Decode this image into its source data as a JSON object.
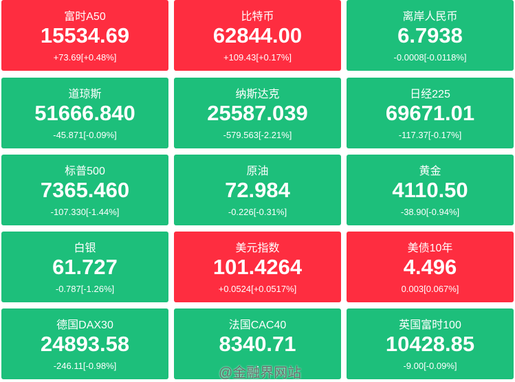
{
  "tiles": [
    {
      "name": "富时A50",
      "price": "15534.69",
      "change": "+73.69[+0.48%]",
      "color": "#fe2d40"
    },
    {
      "name": "比特币",
      "price": "62844.00",
      "change": "+109.43[+0.17%]",
      "color": "#fe2d40"
    },
    {
      "name": "离岸人民币",
      "price": "6.7938",
      "change": "-0.0008[-0.0118%]",
      "color": "#1dbf7b"
    },
    {
      "name": "道琼斯",
      "price": "51666.840",
      "change": "-45.871[-0.09%]",
      "color": "#1dbf7b"
    },
    {
      "name": "纳斯达克",
      "price": "25587.039",
      "change": "-579.563[-2.21%]",
      "color": "#1dbf7b"
    },
    {
      "name": "日经225",
      "price": "69671.01",
      "change": "-117.37[-0.17%]",
      "color": "#1dbf7b"
    },
    {
      "name": "标普500",
      "price": "7365.460",
      "change": "-107.330[-1.44%]",
      "color": "#1dbf7b"
    },
    {
      "name": "原油",
      "price": "72.984",
      "change": "-0.226[-0.31%]",
      "color": "#1dbf7b"
    },
    {
      "name": "黄金",
      "price": "4110.50",
      "change": "-38.90[-0.94%]",
      "color": "#1dbf7b"
    },
    {
      "name": "白银",
      "price": "61.727",
      "change": "-0.787[-1.26%]",
      "color": "#1dbf7b"
    },
    {
      "name": "美元指数",
      "price": "101.4264",
      "change": "+0.0524[+0.0517%]",
      "color": "#fe2d40"
    },
    {
      "name": "美债10年",
      "price": "4.496",
      "change": "0.003[0.067%]",
      "color": "#fe2d40"
    },
    {
      "name": "德国DAX30",
      "price": "24893.58",
      "change": "-246.11[-0.98%]",
      "color": "#1dbf7b"
    },
    {
      "name": "法国CAC40",
      "price": "8340.71",
      "change": "-",
      "color": "#1dbf7b"
    },
    {
      "name": "英国富时100",
      "price": "10428.85",
      "change": "-9.00[-0.09%]",
      "color": "#1dbf7b"
    }
  ],
  "watermark": "@金融界网站"
}
